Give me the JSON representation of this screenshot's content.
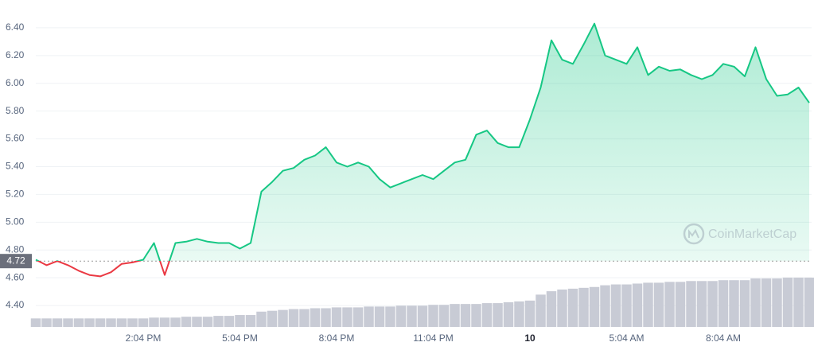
{
  "chart_data": {
    "type": "line",
    "categories": [
      null,
      null,
      null,
      null,
      null,
      null,
      null,
      null,
      null,
      null,
      "2:04 PM",
      null,
      null,
      null,
      null,
      null,
      null,
      null,
      null,
      "5:04 PM",
      null,
      null,
      null,
      null,
      null,
      null,
      null,
      null,
      "8:04 PM",
      null,
      null,
      null,
      null,
      null,
      null,
      null,
      null,
      "11:04 PM",
      null,
      null,
      null,
      null,
      null,
      null,
      null,
      null,
      "10",
      null,
      null,
      null,
      null,
      null,
      null,
      null,
      null,
      "5:04 AM",
      null,
      null,
      null,
      null,
      null,
      null,
      null,
      null,
      "8:04 AM",
      null,
      null,
      null,
      null,
      null,
      null,
      null,
      null
    ],
    "values": [
      4.73,
      4.69,
      4.72,
      4.69,
      4.65,
      4.62,
      4.61,
      4.64,
      4.7,
      4.71,
      4.73,
      4.85,
      4.62,
      4.85,
      4.86,
      4.88,
      4.86,
      4.85,
      4.85,
      4.81,
      4.85,
      5.22,
      5.29,
      5.37,
      5.39,
      5.45,
      5.48,
      5.54,
      5.43,
      5.4,
      5.43,
      5.4,
      5.31,
      5.25,
      5.28,
      5.31,
      5.34,
      5.31,
      5.37,
      5.43,
      5.45,
      5.63,
      5.66,
      5.57,
      5.54,
      5.54,
      5.74,
      5.97,
      6.31,
      6.17,
      6.14,
      6.28,
      6.43,
      6.2,
      6.17,
      6.14,
      6.26,
      6.06,
      6.12,
      6.09,
      6.1,
      6.06,
      6.03,
      6.06,
      6.14,
      6.12,
      6.05,
      6.26,
      6.03,
      5.91,
      5.92,
      5.97,
      5.86
    ],
    "volume": [
      10,
      10,
      10,
      10,
      10,
      10,
      10,
      10,
      10,
      10,
      10,
      11,
      11,
      11,
      12,
      12,
      12,
      13,
      13,
      14,
      14,
      18,
      19,
      20,
      21,
      21,
      22,
      22,
      23,
      23,
      23,
      24,
      24,
      24,
      25,
      25,
      25,
      26,
      26,
      27,
      27,
      27,
      28,
      28,
      29,
      30,
      31,
      38,
      42,
      44,
      45,
      46,
      47,
      49,
      50,
      50,
      51,
      52,
      52,
      53,
      53,
      54,
      54,
      54,
      55,
      55,
      55,
      57,
      57,
      57,
      58,
      58,
      58
    ],
    "baseline": 4.72,
    "color_up": "#16c784",
    "color_down": "#ea3943",
    "volume_color": "#c8cbd5",
    "ylim": [
      4.24,
      6.6
    ],
    "yticks": [
      {
        "value": 4.4,
        "label": "4.40"
      },
      {
        "value": 4.6,
        "label": "4.60"
      },
      {
        "value": 4.8,
        "label": "4.80"
      },
      {
        "value": 5.0,
        "label": "5.00"
      },
      {
        "value": 5.2,
        "label": "5.20"
      },
      {
        "value": 5.4,
        "label": "5.40"
      },
      {
        "value": 5.6,
        "label": "5.60"
      },
      {
        "value": 5.8,
        "label": "5.80"
      },
      {
        "value": 6.0,
        "label": "6.00"
      },
      {
        "value": 6.2,
        "label": "6.20"
      },
      {
        "value": 6.4,
        "label": "6.40"
      }
    ],
    "grid": true,
    "watermark": "CoinMarketCap"
  }
}
